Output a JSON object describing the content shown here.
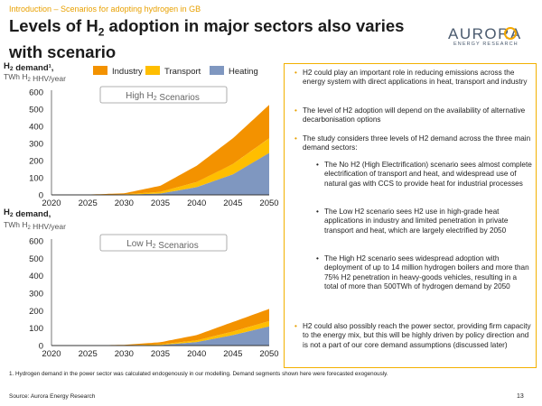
{
  "header": {
    "breadcrumb": "Introduction – Scenarios for adopting hydrogen in GB",
    "title_pre": "Levels of H",
    "title_sub": "2",
    "title_post": " adoption in major sectors also varies with scenario"
  },
  "logo": {
    "word": "AURORA",
    "tagline": "ENERGY RESEARCH"
  },
  "chart_data": [
    {
      "type": "area",
      "stacked": true,
      "title": "High H2 Scenarios",
      "ylabel_line1": "H2 demand¹,",
      "ylabel_line2": "TWh H2 HHV/year",
      "x": [
        2020,
        2025,
        2030,
        2035,
        2040,
        2045,
        2050
      ],
      "xticks": [
        "2020",
        "2025",
        "2030",
        "2035",
        "2040",
        "2045",
        "2050"
      ],
      "ylim": [
        0,
        600
      ],
      "yticks": [
        "0",
        "100",
        "200",
        "300",
        "400",
        "500",
        "600"
      ],
      "legend": "top",
      "grid": false,
      "series": [
        {
          "name": "Heating",
          "color": "#7f97c0",
          "values": [
            0,
            0,
            1,
            8,
            45,
            120,
            245
          ]
        },
        {
          "name": "Transport",
          "color": "#ffbe00",
          "values": [
            0,
            0,
            2,
            10,
            30,
            60,
            85
          ]
        },
        {
          "name": "Industry",
          "color": "#f39200",
          "values": [
            1,
            2,
            6,
            35,
            95,
            150,
            195
          ]
        }
      ]
    },
    {
      "type": "area",
      "stacked": true,
      "title": "Low H2 Scenarios",
      "ylabel_line1": "H2 demand,",
      "ylabel_line2": "TWh H2 HHV/year",
      "x": [
        2020,
        2025,
        2030,
        2035,
        2040,
        2045,
        2050
      ],
      "xticks": [
        "2020",
        "2025",
        "2030",
        "2035",
        "2040",
        "2045",
        "2050"
      ],
      "ylim": [
        0,
        600
      ],
      "yticks": [
        "0",
        "100",
        "200",
        "300",
        "400",
        "500",
        "600"
      ],
      "grid": false,
      "series": [
        {
          "name": "Heating",
          "color": "#7f97c0",
          "values": [
            0,
            0,
            0,
            3,
            20,
            60,
            110
          ]
        },
        {
          "name": "Transport",
          "color": "#ffbe00",
          "values": [
            0,
            0,
            1,
            4,
            10,
            20,
            30
          ]
        },
        {
          "name": "Industry",
          "color": "#f39200",
          "values": [
            1,
            1,
            3,
            12,
            30,
            55,
            70
          ]
        }
      ]
    }
  ],
  "legend_items": [
    {
      "name": "Industry",
      "color": "#f39200"
    },
    {
      "name": "Transport",
      "color": "#ffbe00"
    },
    {
      "name": "Heating",
      "color": "#7f97c0"
    }
  ],
  "panel": {
    "bullets": [
      "H2 could play an important role in reducing emissions across the energy system with direct applications in heat, transport and industry",
      "The level of H2 adoption will depend on the availability of alternative decarbonisation options",
      "The study considers three levels of H2 demand across the three main demand sectors:",
      "H2 could also possibly reach the power sector, providing firm capacity to the energy mix, but this will be highly driven by policy direction and is not a part of our core demand assumptions (discussed later)"
    ],
    "subbullets": [
      "The No H2 (High Electrification) scenario sees almost complete electrification of transport and heat, and widespread use of natural gas with CCS to provide heat for industrial processes",
      "The Low H2 scenario sees H2 use in high-grade heat applications in industry and limited penetration in private transport and heat, which are largely electrified by 2050",
      "The High H2 scenario sees widespread adoption with deployment of up to 14 million hydrogen boilers and more than 75% H2 penetration in heavy-goods vehicles, resulting in a total of more than 500TWh of hydrogen demand by 2050"
    ]
  },
  "footnote": "1. Hydrogen demand in the power sector was calculated endogenously in our modelling. Demand segments shown here were forecasted exogenously.",
  "source": "Source: Aurora Energy Research",
  "page_number": "13"
}
